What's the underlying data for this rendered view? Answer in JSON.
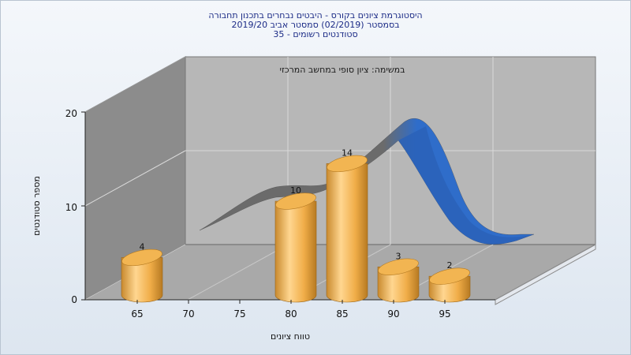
{
  "chart_data": {
    "type": "bar",
    "title_lines": [
      "היסטוגרמת ציונים בקורס - היבטים נבחרים בתכנון תחבורה",
      "בסמסטר (02/2019) סמסטר אביב 2019/20",
      "סטודנטים רשומים - 35"
    ],
    "subtitle": "במשימה: ציון סופי במחשב המרכזי",
    "xlabel": "טווח ציונים",
    "ylabel": "מספר סטודנטים",
    "x_ticks": [
      "65",
      "70",
      "75",
      "80",
      "85",
      "90",
      "95"
    ],
    "y_ticks": [
      "0",
      "10",
      "20"
    ],
    "ylim": [
      0,
      20
    ],
    "xlim": [
      62.5,
      100
    ],
    "grid": true,
    "bars": [
      {
        "x": 65,
        "value": 4,
        "label": "4"
      },
      {
        "x": 80,
        "value": 10,
        "label": "10"
      },
      {
        "x": 85,
        "value": 14,
        "label": "14"
      },
      {
        "x": 90,
        "value": 3,
        "label": "3"
      },
      {
        "x": 95,
        "value": 2,
        "label": "2"
      }
    ],
    "bar_color": "#f2b552",
    "curve_colors": {
      "low": "#707070",
      "high": "#2e6cc7"
    },
    "wall_colors": {
      "back": "#b6b6b6",
      "side": "#8a8a8a",
      "floor": "#a6a6a6"
    }
  }
}
